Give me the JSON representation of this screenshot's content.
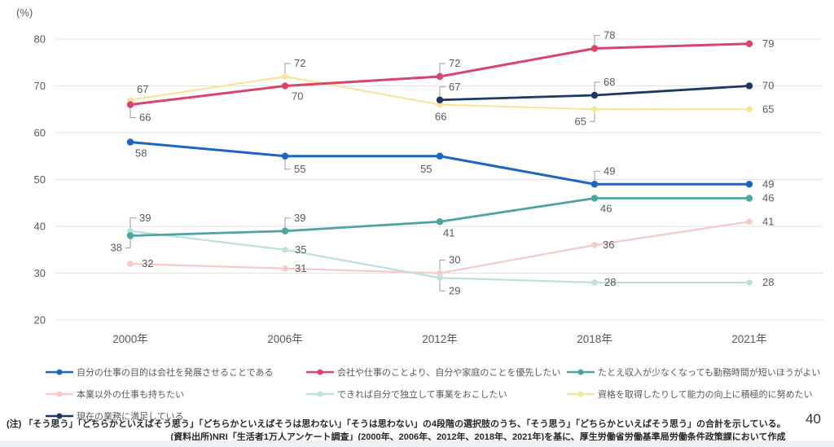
{
  "page": {
    "number": "40"
  },
  "footnotes": {
    "note": "(注) 「そう思う」「どちらかといえばそう思う」「どちらかといえばそうは思わない」「そうは思わない」の4段階の選択肢のうち、「そう思う」「どちらかといえばそう思う」の合計を示している。",
    "source": "(資料出所)NRI「生活者1万人アンケート調査」(2000年、2006年、2012年、2018年、2021年)を基に、厚生労働省労働基準局労働条件政策課において作成"
  },
  "chart_data": {
    "type": "line",
    "unit_label": "(%)",
    "categories": [
      "2000年",
      "2006年",
      "2012年",
      "2018年",
      "2021年"
    ],
    "ylim": [
      20,
      80
    ],
    "yticks": [
      20,
      30,
      40,
      50,
      60,
      70,
      80
    ],
    "grid": "horizontal",
    "legend_position": "bottom",
    "label_color": "#595959",
    "gridline_color": "#e3e3e3",
    "series": [
      {
        "name": "自分の仕事の目的は会社を発展させることである",
        "color": "#1B66C2",
        "values": [
          58,
          55,
          55,
          49,
          49
        ]
      },
      {
        "name": "会社や仕事のことより、自分や家庭のことを優先したい",
        "color": "#D9456C",
        "values": [
          66,
          70,
          72,
          78,
          79
        ]
      },
      {
        "name": "たとえ収入が少なくなっても勤務時間が短いほうがよい",
        "color": "#4EA3A3",
        "values": [
          38,
          39,
          41,
          46,
          46
        ]
      },
      {
        "name": "本業以外の仕事も持ちたい",
        "color": "#F7C9C7",
        "values": [
          32,
          31,
          30,
          36,
          41
        ]
      },
      {
        "name": "できれば自分で独立して事業をおこしたい",
        "color": "#BCE0DD",
        "values": [
          39,
          35,
          29,
          28,
          28
        ]
      },
      {
        "name": "資格を取得したりして能力の向上に積極的に努めたい",
        "color": "#F8E59B",
        "values": [
          67,
          72,
          66,
          65,
          65
        ]
      },
      {
        "name": "現在の業務に満足している",
        "color": "#1B3A63",
        "values": [
          null,
          null,
          67,
          68,
          70
        ]
      }
    ]
  }
}
